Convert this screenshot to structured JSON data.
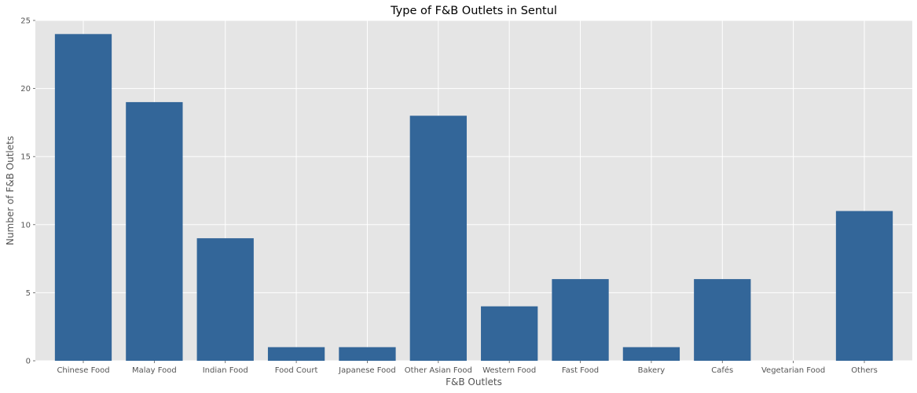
{
  "chart_data": {
    "type": "bar",
    "title": "Type of F&B Outlets in Sentul",
    "xlabel": "F&B Outlets",
    "ylabel": "Number of F&B Outlets",
    "categories": [
      "Chinese Food",
      "Malay Food",
      "Indian Food",
      "Food Court",
      "Japanese Food",
      "Other Asian Food",
      "Western Food",
      "Fast Food",
      "Bakery",
      "Cafés",
      "Vegetarian Food",
      "Others"
    ],
    "values": [
      24,
      19,
      9,
      1,
      1,
      18,
      4,
      6,
      1,
      6,
      0,
      11
    ],
    "ylim": [
      0,
      25
    ],
    "yticks": [
      0,
      5,
      10,
      15,
      20,
      25
    ],
    "grid": true,
    "colors": {
      "bar": "#336699",
      "background": "#e5e5e5",
      "grid": "#ffffff"
    }
  }
}
